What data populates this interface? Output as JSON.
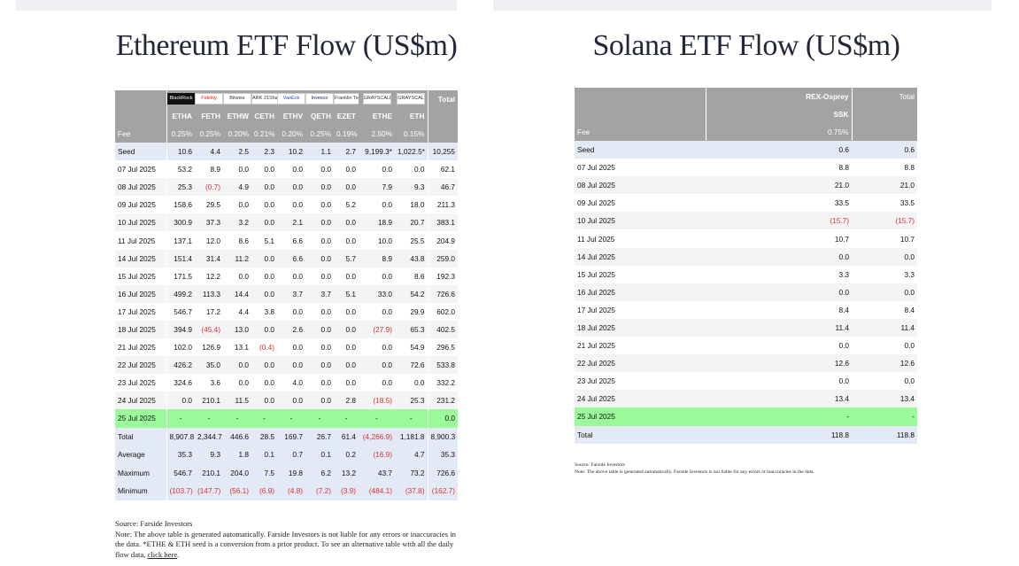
{
  "eth": {
    "title": "Ethereum ETF Flow (US$m)",
    "logos": [
      "BlackRock",
      "Fidelity",
      "Bitwise",
      "ARK 21Shares",
      "VanEck",
      "Invesco",
      "Franklin Templeton",
      "GRAYSCALE",
      "GRAYSCALE"
    ],
    "tickers": [
      "ETHA",
      "FETH",
      "ETHW",
      "CETH",
      "ETHV",
      "QETH",
      "EZET",
      "ETHE",
      "ETH"
    ],
    "total_label": "Total",
    "fee_label": "Fee",
    "fees": [
      "0.25%",
      "0.25%",
      "0.20%",
      "0.21%",
      "0.20%",
      "0.25%",
      "0.19%",
      "2.50%",
      "0.15%"
    ],
    "rows": [
      {
        "date": "Seed",
        "values": [
          "10.6",
          "4.4",
          "2.5",
          "2.3",
          "10.2",
          "1.1",
          "2.7",
          "9,199.3*",
          "1,022.5*",
          "10,255"
        ],
        "kind": "seed"
      },
      {
        "date": "07 Jul 2025",
        "values": [
          "53.2",
          "8.9",
          "0.0",
          "0.0",
          "0.0",
          "0.0",
          "0.0",
          "0.0",
          "0.0",
          "62.1"
        ]
      },
      {
        "date": "08 Jul 2025",
        "values": [
          "25.3",
          "(0.7)",
          "4.9",
          "0.0",
          "0.0",
          "0.0",
          "0.0",
          "7.9",
          "9.3",
          "46.7"
        ]
      },
      {
        "date": "09 Jul 2025",
        "values": [
          "158.6",
          "29.5",
          "0.0",
          "0.0",
          "0.0",
          "0.0",
          "5.2",
          "0.0",
          "18.0",
          "211.3"
        ]
      },
      {
        "date": "10 Jul 2025",
        "values": [
          "300.9",
          "37.3",
          "3.2",
          "0.0",
          "2.1",
          "0.0",
          "0.0",
          "18.9",
          "20.7",
          "383.1"
        ]
      },
      {
        "date": "11 Jul 2025",
        "values": [
          "137.1",
          "12.0",
          "8.6",
          "5.1",
          "6.6",
          "0.0",
          "0.0",
          "10.0",
          "25.5",
          "204.9"
        ]
      },
      {
        "date": "14 Jul 2025",
        "values": [
          "151.4",
          "31.4",
          "11.2",
          "0.0",
          "6.6",
          "0.0",
          "5.7",
          "8.9",
          "43.8",
          "259.0"
        ]
      },
      {
        "date": "15 Jul 2025",
        "values": [
          "171.5",
          "12.2",
          "0.0",
          "0.0",
          "0.0",
          "0.0",
          "0.0",
          "0.0",
          "8.6",
          "192.3"
        ]
      },
      {
        "date": "16 Jul 2025",
        "values": [
          "499.2",
          "113.3",
          "14.4",
          "0.0",
          "3.7",
          "3.7",
          "5.1",
          "33.0",
          "54.2",
          "726.6"
        ]
      },
      {
        "date": "17 Jul 2025",
        "values": [
          "546.7",
          "17.2",
          "4.4",
          "3.8",
          "0.0",
          "0.0",
          "0.0",
          "0.0",
          "29.9",
          "602.0"
        ]
      },
      {
        "date": "18 Jul 2025",
        "values": [
          "394.9",
          "(45.4)",
          "13.0",
          "0.0",
          "2.6",
          "0.0",
          "0.0",
          "(27.9)",
          "65.3",
          "402.5"
        ]
      },
      {
        "date": "21 Jul 2025",
        "values": [
          "102.0",
          "126.9",
          "13.1",
          "(0.4)",
          "0.0",
          "0.0",
          "0.0",
          "0.0",
          "54.9",
          "296.5"
        ]
      },
      {
        "date": "22 Jul 2025",
        "values": [
          "426.2",
          "35.0",
          "0.0",
          "0.0",
          "0.0",
          "0.0",
          "0.0",
          "0.0",
          "72.6",
          "533.8"
        ]
      },
      {
        "date": "23 Jul 2025",
        "values": [
          "324.6",
          "3.6",
          "0.0",
          "0.0",
          "4.0",
          "0.0",
          "0.0",
          "0.0",
          "0.0",
          "332.2"
        ]
      },
      {
        "date": "24 Jul 2025",
        "values": [
          "0.0",
          "210.1",
          "11.5",
          "0.0",
          "0.0",
          "0.0",
          "2.8",
          "(18.5)",
          "25.3",
          "231.2"
        ]
      },
      {
        "date": "25 Jul 2025",
        "values": [
          "-",
          "-",
          "-",
          "-",
          "-",
          "-",
          "-",
          "-",
          "-",
          "0.0"
        ],
        "kind": "today"
      },
      {
        "date": "Total",
        "values": [
          "8,907.8",
          "2,344.7",
          "446.6",
          "28.5",
          "169.7",
          "26.7",
          "61.4",
          "(4,266.9)",
          "1,181.8",
          "8,900.3"
        ],
        "kind": "summary"
      },
      {
        "date": "Average",
        "values": [
          "35.3",
          "9.3",
          "1.8",
          "0.1",
          "0.7",
          "0.1",
          "0.2",
          "(16.9)",
          "4.7",
          "35.3"
        ],
        "kind": "summary"
      },
      {
        "date": "Maximum",
        "values": [
          "546.7",
          "210.1",
          "204.0",
          "7.5",
          "19.8",
          "6.2",
          "13.2",
          "43.7",
          "73.2",
          "726.6"
        ],
        "kind": "summary"
      },
      {
        "date": "Minimum",
        "values": [
          "(103.7)",
          "(147.7)",
          "(56.1)",
          "(6.9)",
          "(4.8)",
          "(7.2)",
          "(3.9)",
          "(484.1)",
          "(37.8)",
          "(162.7)"
        ],
        "kind": "summary"
      }
    ],
    "note_source": "Source: Farside Investors",
    "note_text": "Note: The above table is generated automatically. Farside Investors is not liable for any errors or inaccuracies in the data. *ETHE & ETH seed is a conversion from a prior product.  To see an alternative table with all the daily flow data, ",
    "note_link": "click here",
    "note_end": "."
  },
  "sol": {
    "title": "Solana ETF Flow (US$m)",
    "fund": "REX-Osprey",
    "ticker": "SSK",
    "total_label": "Total",
    "fee_label": "Fee",
    "fee": "0.75%",
    "rows": [
      {
        "date": "Seed",
        "value": "0.6",
        "total": "0.6",
        "kind": "seed"
      },
      {
        "date": "07 Jul 2025",
        "value": "8.8",
        "total": "8.8"
      },
      {
        "date": "08 Jul 2025",
        "value": "21.0",
        "total": "21.0"
      },
      {
        "date": "09 Jul 2025",
        "value": "33.5",
        "total": "33.5"
      },
      {
        "date": "10 Jul 2025",
        "value": "(15.7)",
        "total": "(15.7)"
      },
      {
        "date": "11 Jul 2025",
        "value": "10.7",
        "total": "10.7"
      },
      {
        "date": "14 Jul 2025",
        "value": "0.0",
        "total": "0.0"
      },
      {
        "date": "15 Jul 2025",
        "value": "3.3",
        "total": "3.3"
      },
      {
        "date": "16 Jul 2025",
        "value": "0.0",
        "total": "0.0"
      },
      {
        "date": "17 Jul 2025",
        "value": "8.4",
        "total": "8.4"
      },
      {
        "date": "18 Jul 2025",
        "value": "11.4",
        "total": "11.4"
      },
      {
        "date": "21 Jul 2025",
        "value": "0.0",
        "total": "0.0"
      },
      {
        "date": "22 Jul 2025",
        "value": "12.6",
        "total": "12.6"
      },
      {
        "date": "23 Jul 2025",
        "value": "0.0",
        "total": "0.0"
      },
      {
        "date": "24 Jul 2025",
        "value": "13.4",
        "total": "13.4"
      },
      {
        "date": "25 Jul 2025",
        "value": "-",
        "total": "-",
        "kind": "today"
      },
      {
        "date": "Total",
        "value": "118.8",
        "total": "118.8",
        "kind": "total"
      }
    ],
    "note_source": "Source: Farside Investors",
    "note_text": "Note: The above table is generated automatically. Farside Investors is not liable for any errors or inaccuracies in the data."
  }
}
